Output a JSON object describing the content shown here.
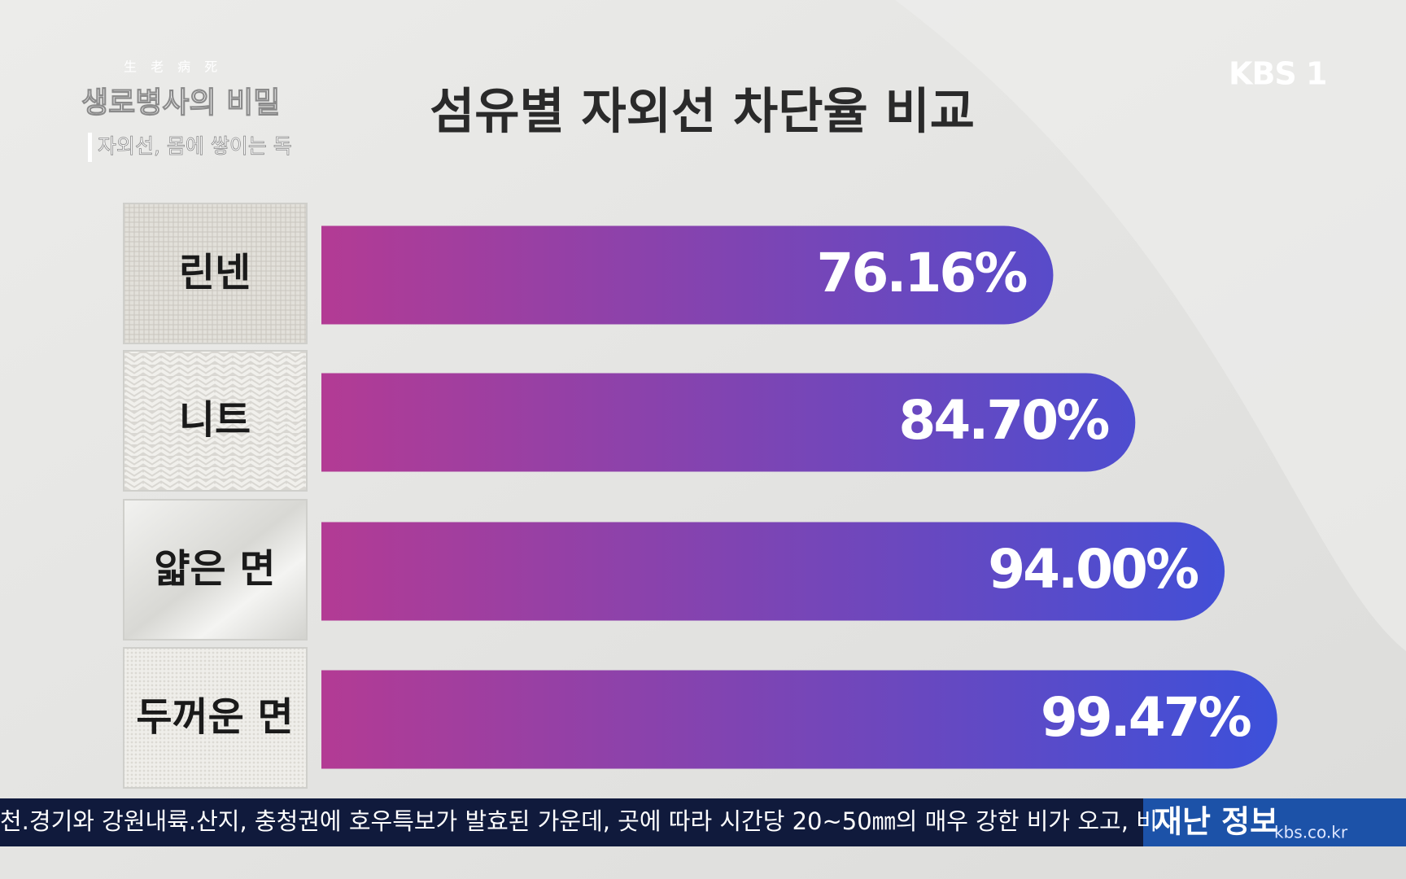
{
  "program": {
    "hanja": "生 老 病 死",
    "title": "생로병사의 비밀",
    "subtitle": "자외선, 몸에 쌓이는 독"
  },
  "channel_logo": "KBS 1",
  "chart_data": {
    "type": "bar",
    "orientation": "horizontal",
    "title": "섬유별 자외선 차단율 비교",
    "categories": [
      "린넨",
      "니트",
      "얇은 면",
      "두꺼운 면"
    ],
    "values": [
      76.16,
      84.7,
      94.0,
      99.47
    ],
    "value_labels": [
      "76.16%",
      "84.70%",
      "94.00%",
      "99.47%"
    ],
    "color": [
      "#b33b94",
      "#3c50da"
    ]
  },
  "ticker": {
    "text": "천.경기와 강원내륙.산지, 충청권에 호우특보가 발효된 가운데, 곳에 따라 시간당 20~50㎜의 매우 강한 비가 오고, 비",
    "label": "재난 정보",
    "site": "kbs.co.kr"
  }
}
